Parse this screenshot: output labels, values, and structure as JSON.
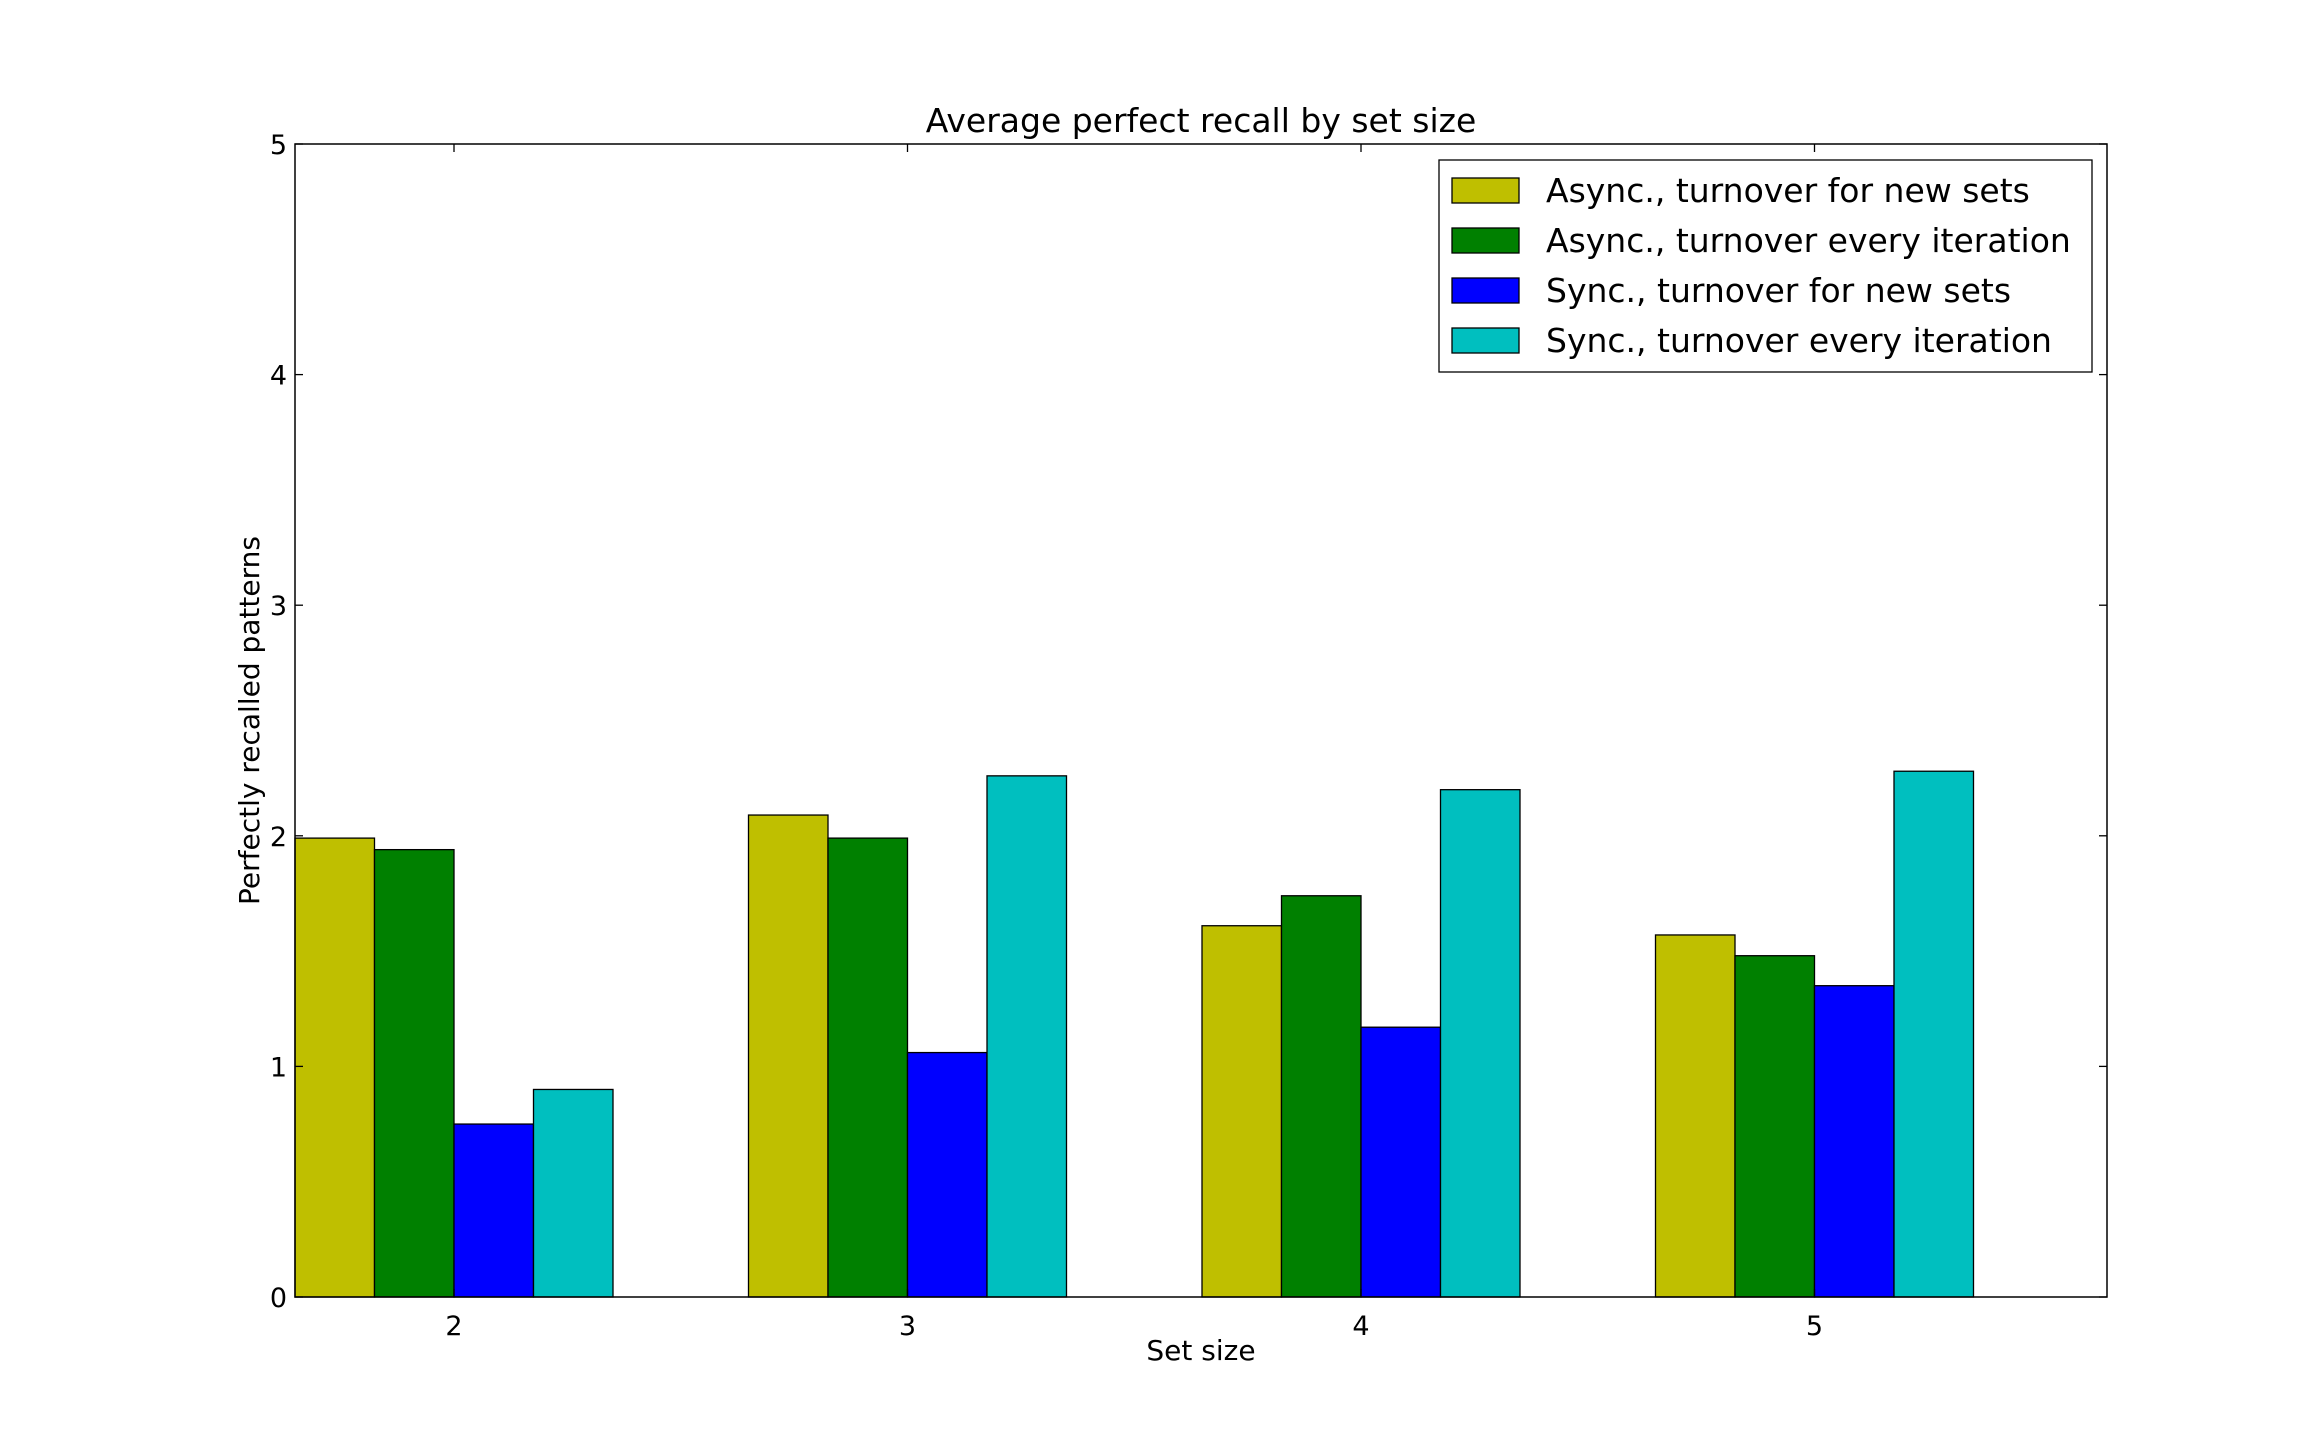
{
  "chart_data": {
    "type": "bar",
    "title": "Average perfect recall by set size",
    "xlabel": "Set size",
    "ylabel": "Perfectly recalled patterns",
    "categories": [
      "2",
      "3",
      "4",
      "5"
    ],
    "ylim": [
      0,
      5
    ],
    "yticks": [
      "0",
      "1",
      "2",
      "3",
      "4",
      "5"
    ],
    "grid": false,
    "legend_position": "top-right",
    "series": [
      {
        "name": "Async., turnover for new sets",
        "color": "#bfbf00",
        "values": [
          1.99,
          2.09,
          1.61,
          1.57
        ]
      },
      {
        "name": "Async., turnover every iteration",
        "color": "#008000",
        "values": [
          1.94,
          1.99,
          1.74,
          1.48
        ]
      },
      {
        "name": "Sync., turnover for new sets",
        "color": "#0000ff",
        "values": [
          0.75,
          1.06,
          1.17,
          1.35
        ]
      },
      {
        "name": "Sync., turnover every iteration",
        "color": "#00bfbf",
        "values": [
          0.9,
          2.26,
          2.2,
          2.28
        ]
      }
    ]
  }
}
